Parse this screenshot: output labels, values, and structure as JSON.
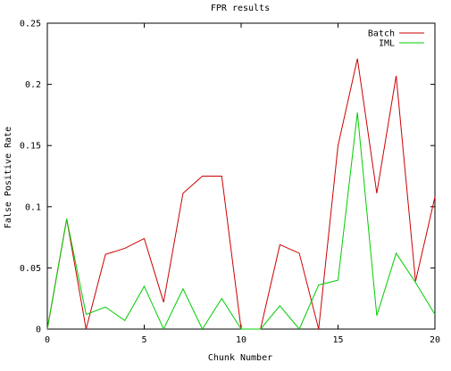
{
  "chart_data": {
    "type": "line",
    "title": "FPR results",
    "xlabel": "Chunk Number",
    "ylabel": "False Positive Rate",
    "xlim": [
      0,
      20
    ],
    "ylim": [
      0,
      0.25
    ],
    "xticks": [
      0,
      5,
      10,
      15,
      20
    ],
    "xtick_labels": [
      "0",
      "5",
      "10",
      "15",
      "20"
    ],
    "yticks": [
      0,
      0.05,
      0.1,
      0.15,
      0.2,
      0.25
    ],
    "ytick_labels": [
      "0",
      "0.05",
      "0.1",
      "0.15",
      "0.2",
      "0.25"
    ],
    "grid": false,
    "legend_position": "top-right",
    "x": [
      0,
      1,
      2,
      3,
      4,
      5,
      6,
      7,
      8,
      9,
      10,
      11,
      12,
      13,
      14,
      15,
      16,
      17,
      18,
      19,
      20
    ],
    "series": [
      {
        "name": "Batch",
        "color": "#cc0000",
        "values": [
          0,
          0.09,
          0,
          0.061,
          0.066,
          0.074,
          0.022,
          0.111,
          0.125,
          0.125,
          0,
          0,
          0.069,
          0.062,
          0,
          0.15,
          0.221,
          0.111,
          0.207,
          0.039,
          0.108
        ]
      },
      {
        "name": "IML",
        "color": "#00cc00",
        "values": [
          0,
          0.09,
          0.012,
          0.018,
          0.007,
          0.035,
          0,
          0.033,
          0,
          0.025,
          0,
          0,
          0.019,
          0,
          0.036,
          0.04,
          0.177,
          0.011,
          0.062,
          0.038,
          0.012
        ]
      }
    ]
  }
}
